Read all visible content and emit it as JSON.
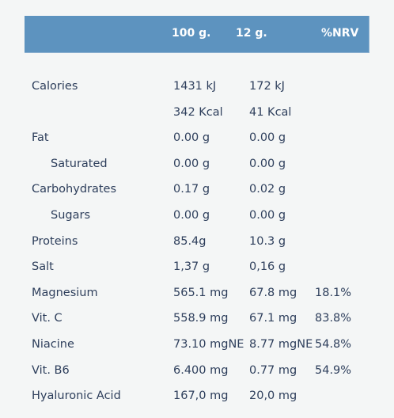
{
  "header": {
    "col_100g": "100 g.",
    "col_12g": "12 g.",
    "col_nrv": "%NRV"
  },
  "rows": [
    {
      "name": "Calories",
      "per100": "1431 kJ",
      "per12": "172 kJ",
      "nrv": "",
      "sub": false
    },
    {
      "name": "",
      "per100": "342 Kcal",
      "per12": "41 Kcal",
      "nrv": "",
      "sub": false
    },
    {
      "name": "Fat",
      "per100": "0.00 g",
      "per12": "0.00 g",
      "nrv": "",
      "sub": false
    },
    {
      "name": "Saturated",
      "per100": "0.00 g",
      "per12": "0.00 g",
      "nrv": "",
      "sub": true
    },
    {
      "name": "Carbohydrates",
      "per100": "0.17 g",
      "per12": "0.02 g",
      "nrv": "",
      "sub": false
    },
    {
      "name": "Sugars",
      "per100": "0.00 g",
      "per12": "0.00 g",
      "nrv": "",
      "sub": true
    },
    {
      "name": "Proteins",
      "per100": "85.4g",
      "per12": "10.3 g",
      "nrv": "",
      "sub": false
    },
    {
      "name": "Salt",
      "per100": "1,37 g",
      "per12": "0,16 g",
      "nrv": "",
      "sub": false
    },
    {
      "name": "Magnesium",
      "per100": "565.1 mg",
      "per12": "67.8 mg",
      "nrv": "18.1%",
      "sub": false
    },
    {
      "name": "Vit. C",
      "per100": "558.9 mg",
      "per12": "67.1 mg",
      "nrv": "83.8%",
      "sub": false
    },
    {
      "name": "Niacine",
      "per100": "73.10 mgNE",
      "per12": "8.77 mgNE",
      "nrv": "54.8%",
      "sub": false
    },
    {
      "name": "Vit. B6",
      "per100": "6.400 mg",
      "per12": "0.77 mg",
      "nrv": "54.9%",
      "sub": false
    },
    {
      "name": "Hyaluronic Acid",
      "per100": "167,0 mg",
      "per12": "20,0 mg",
      "nrv": "",
      "sub": false
    }
  ]
}
